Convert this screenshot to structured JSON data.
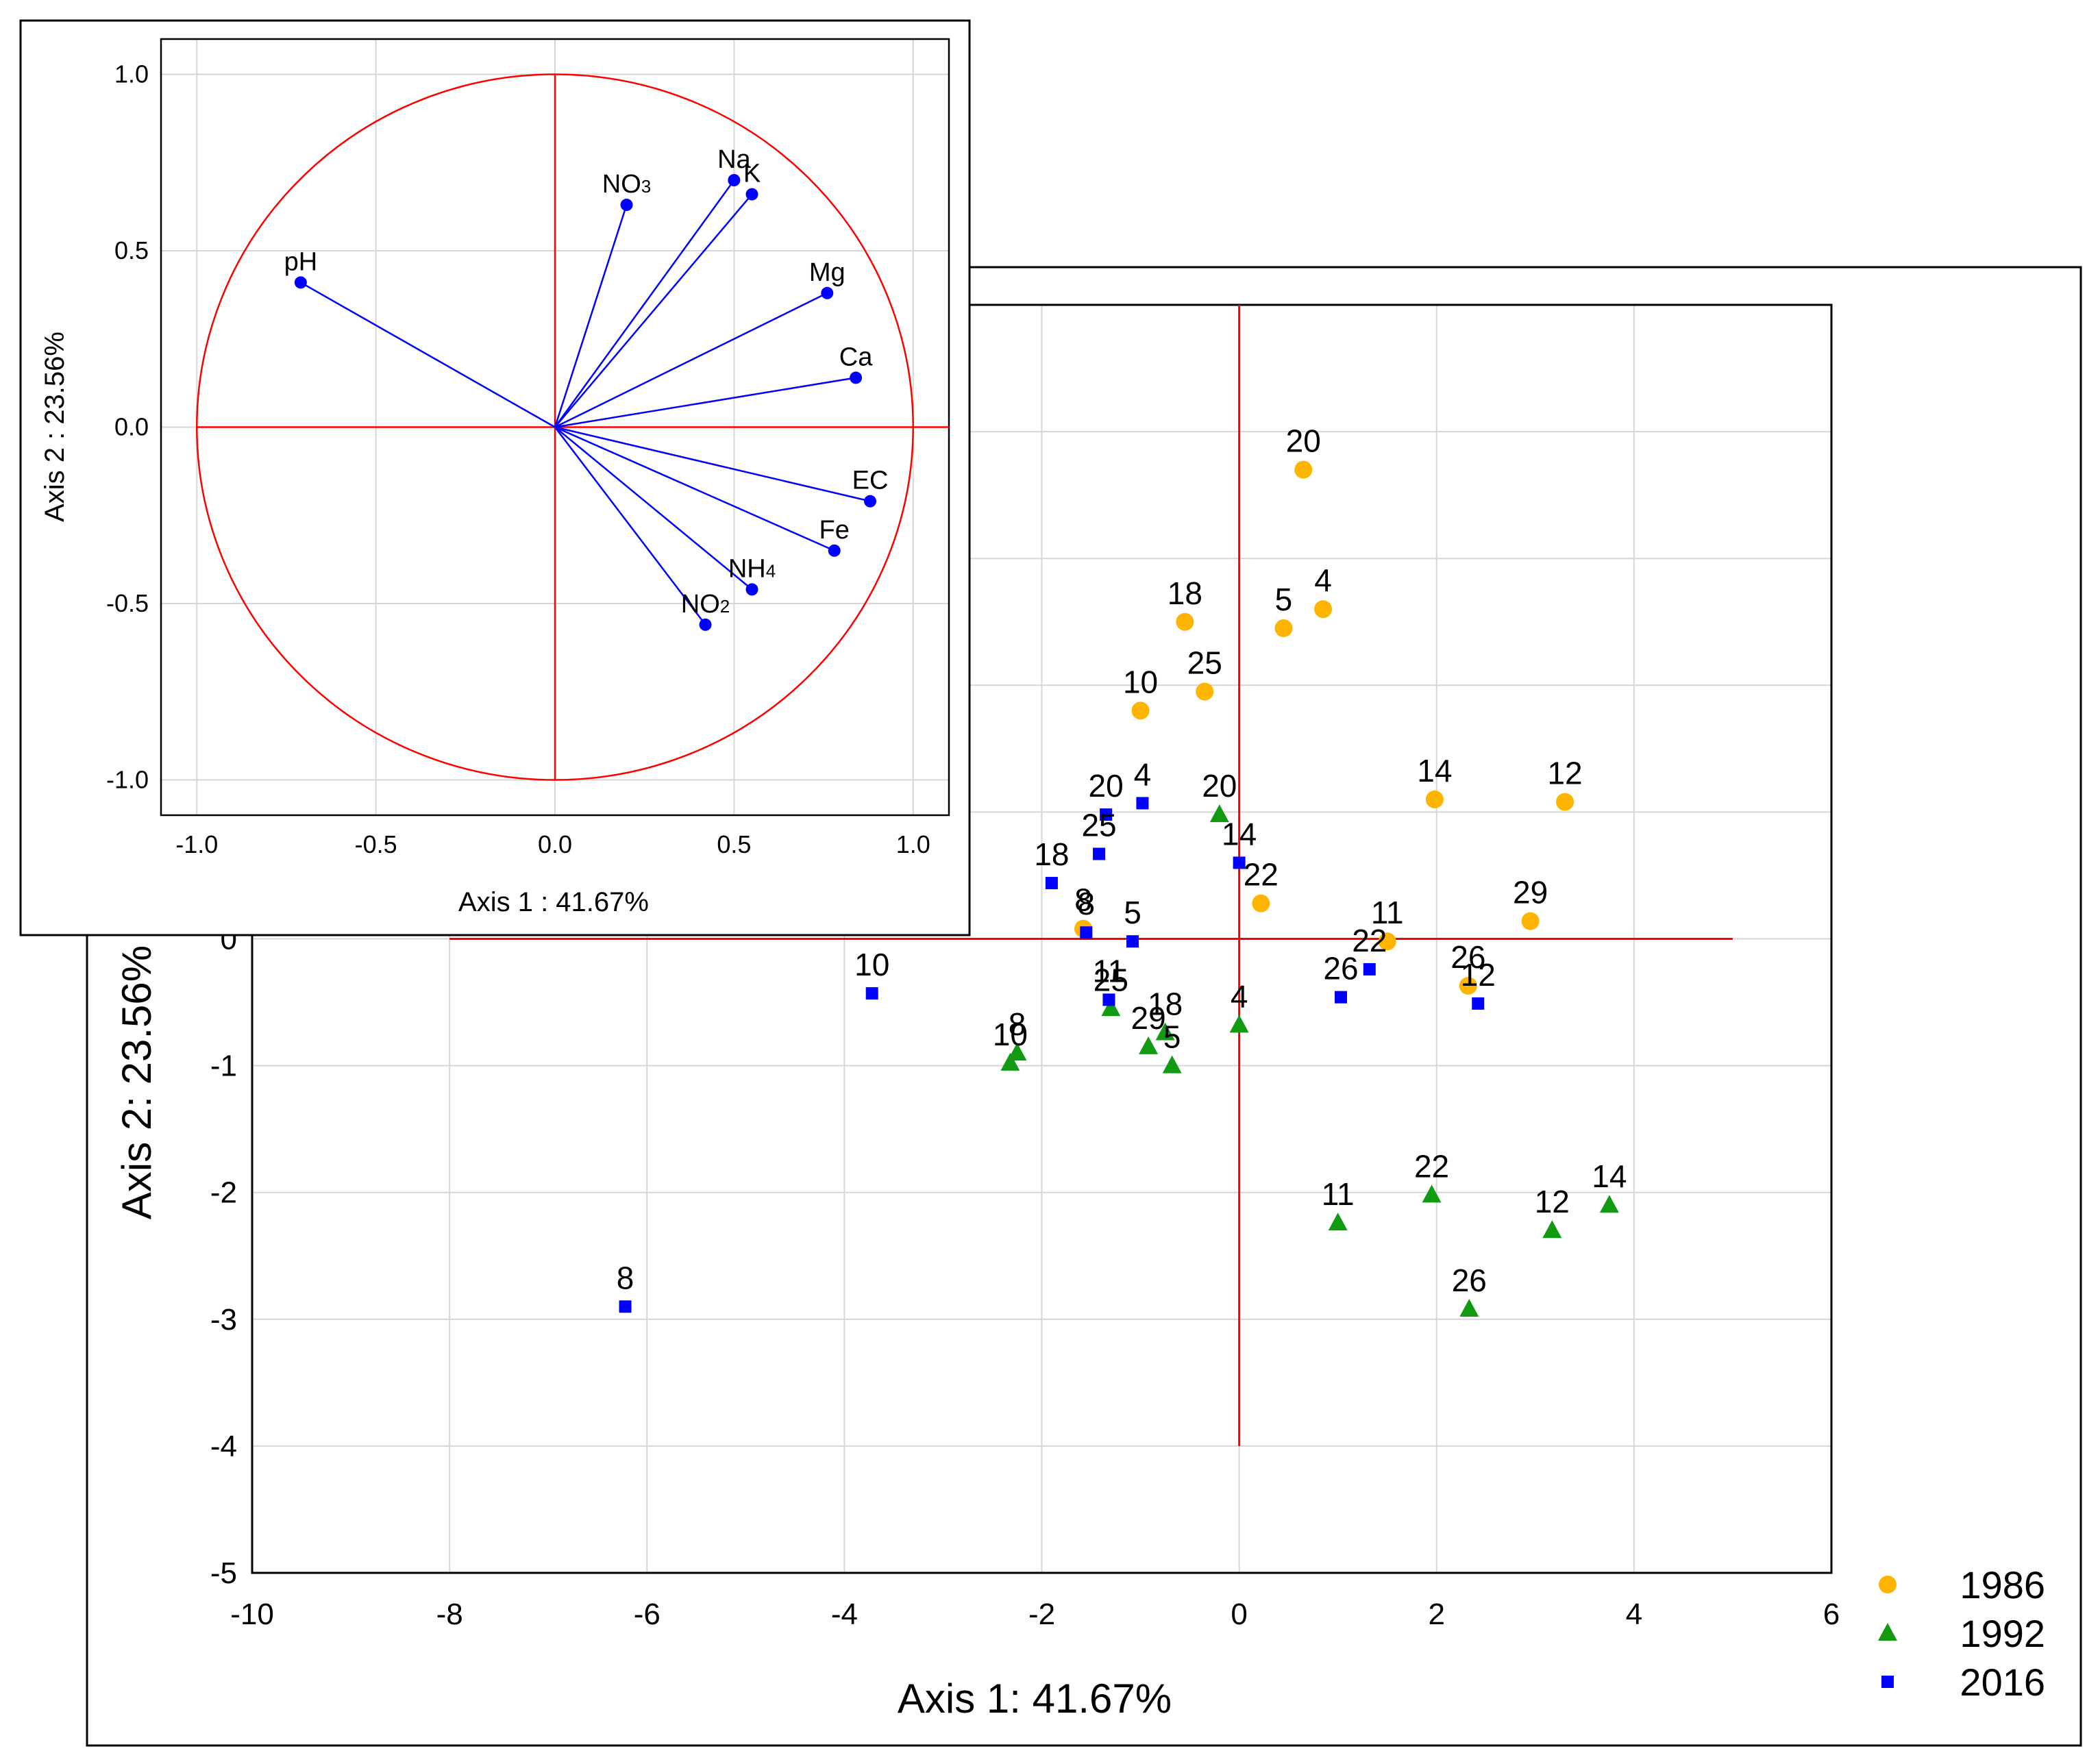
{
  "chart_data": [
    {
      "type": "scatter",
      "id": "biplot",
      "xlabel": "Axis 1: 41.67%",
      "ylabel": "Axis 2: 23.56%",
      "xlim": [
        -10,
        6
      ],
      "ylim": [
        -5,
        5
      ],
      "xticks": [
        -10,
        -8,
        -6,
        -4,
        -2,
        0,
        2,
        4,
        6
      ],
      "yticks": [
        -5,
        -4,
        -3,
        -2,
        -1,
        0
      ],
      "grid": true,
      "legend_position": "bottom-right",
      "axes_lines": {
        "x_range": [
          -8,
          5
        ],
        "y_range": [
          -4,
          5
        ]
      },
      "series": [
        {
          "name": "1986",
          "marker": "circle",
          "color": "#ffb400",
          "points": [
            {
              "label": "20",
              "x": 0.65,
              "y": 3.7
            },
            {
              "label": "18",
              "x": -0.55,
              "y": 2.5
            },
            {
              "label": "5",
              "x": 0.45,
              "y": 2.45
            },
            {
              "label": "4",
              "x": 0.85,
              "y": 2.6
            },
            {
              "label": "10",
              "x": -1.0,
              "y": 1.8
            },
            {
              "label": "25",
              "x": -0.35,
              "y": 1.95
            },
            {
              "label": "14",
              "x": 1.98,
              "y": 1.1
            },
            {
              "label": "12",
              "x": 3.3,
              "y": 1.08
            },
            {
              "label": "22",
              "x": 0.22,
              "y": 0.28
            },
            {
              "label": "29",
              "x": 2.95,
              "y": 0.14
            },
            {
              "label": "11",
              "x": 1.5,
              "y": -0.02
            },
            {
              "label": "8",
              "x": -1.58,
              "y": 0.08
            },
            {
              "label": "26",
              "x": 2.32,
              "y": -0.37
            }
          ]
        },
        {
          "name": "1992",
          "marker": "triangle",
          "color": "#129b12",
          "points": [
            {
              "label": "20",
              "x": -0.2,
              "y": 0.98
            },
            {
              "label": "4",
              "x": 0.0,
              "y": -0.68
            },
            {
              "label": "18",
              "x": -0.75,
              "y": -0.74
            },
            {
              "label": "25",
              "x": -1.3,
              "y": -0.55
            },
            {
              "label": "29",
              "x": -0.92,
              "y": -0.85
            },
            {
              "label": "5",
              "x": -0.68,
              "y": -1.0
            },
            {
              "label": "8",
              "x": -2.25,
              "y": -0.9
            },
            {
              "label": "10",
              "x": -2.32,
              "y": -0.98
            },
            {
              "label": "11",
              "x": 1.0,
              "y": -2.24
            },
            {
              "label": "22",
              "x": 1.95,
              "y": -2.02
            },
            {
              "label": "12",
              "x": 3.17,
              "y": -2.3
            },
            {
              "label": "14",
              "x": 3.75,
              "y": -2.1
            },
            {
              "label": "26",
              "x": 2.33,
              "y": -2.92
            }
          ]
        },
        {
          "name": "2016",
          "marker": "square",
          "color": "#0000ff",
          "points": [
            {
              "label": "20",
              "x": -1.35,
              "y": 0.98
            },
            {
              "label": "4",
              "x": -0.98,
              "y": 1.07
            },
            {
              "label": "25",
              "x": -1.42,
              "y": 0.67
            },
            {
              "label": "18",
              "x": -1.9,
              "y": 0.44
            },
            {
              "label": "14",
              "x": 0.0,
              "y": 0.6
            },
            {
              "label": "8",
              "x": -1.55,
              "y": 0.05
            },
            {
              "label": "5",
              "x": -1.08,
              "y": -0.02
            },
            {
              "label": "11",
              "x": -1.32,
              "y": -0.48
            },
            {
              "label": "22",
              "x": 1.32,
              "y": -0.24
            },
            {
              "label": "26",
              "x": 1.03,
              "y": -0.46
            },
            {
              "label": "12",
              "x": 2.42,
              "y": -0.51
            },
            {
              "label": "10",
              "x": -3.72,
              "y": -0.43
            },
            {
              "label": "8",
              "x": -6.22,
              "y": -2.9
            }
          ]
        }
      ]
    },
    {
      "type": "scatter",
      "id": "loadings",
      "xlabel": "Axis 1 : 41.67%",
      "ylabel": "Axis 2 : 23.56%",
      "xlim": [
        -1.1,
        1.1
      ],
      "ylim": [
        -1.1,
        1.1
      ],
      "xticks": [
        "-1.0",
        "-0.5",
        "0.0",
        "0.5",
        "1.0"
      ],
      "yticks": [
        "1.0",
        "0.5",
        "0.0",
        "-0.5",
        "-1.0"
      ],
      "grid": true,
      "circle_radius": 1.0,
      "vector_color": "#0000ff",
      "circle_color": "#ff0000",
      "vectors": [
        {
          "main": "pH",
          "sub": "",
          "x": -0.71,
          "y": 0.41
        },
        {
          "main": "NO",
          "sub": "3",
          "x": 0.2,
          "y": 0.63
        },
        {
          "main": "Na",
          "sub": "",
          "x": 0.5,
          "y": 0.7
        },
        {
          "main": "K",
          "sub": "",
          "x": 0.55,
          "y": 0.66
        },
        {
          "main": "Mg",
          "sub": "",
          "x": 0.76,
          "y": 0.38
        },
        {
          "main": "Ca",
          "sub": "",
          "x": 0.84,
          "y": 0.14
        },
        {
          "main": "EC",
          "sub": "",
          "x": 0.88,
          "y": -0.21
        },
        {
          "main": "Fe",
          "sub": "",
          "x": 0.78,
          "y": -0.35
        },
        {
          "main": "NH",
          "sub": "4",
          "x": 0.55,
          "y": -0.46
        },
        {
          "main": "NO",
          "sub": "2",
          "x": 0.42,
          "y": -0.56
        }
      ]
    }
  ]
}
